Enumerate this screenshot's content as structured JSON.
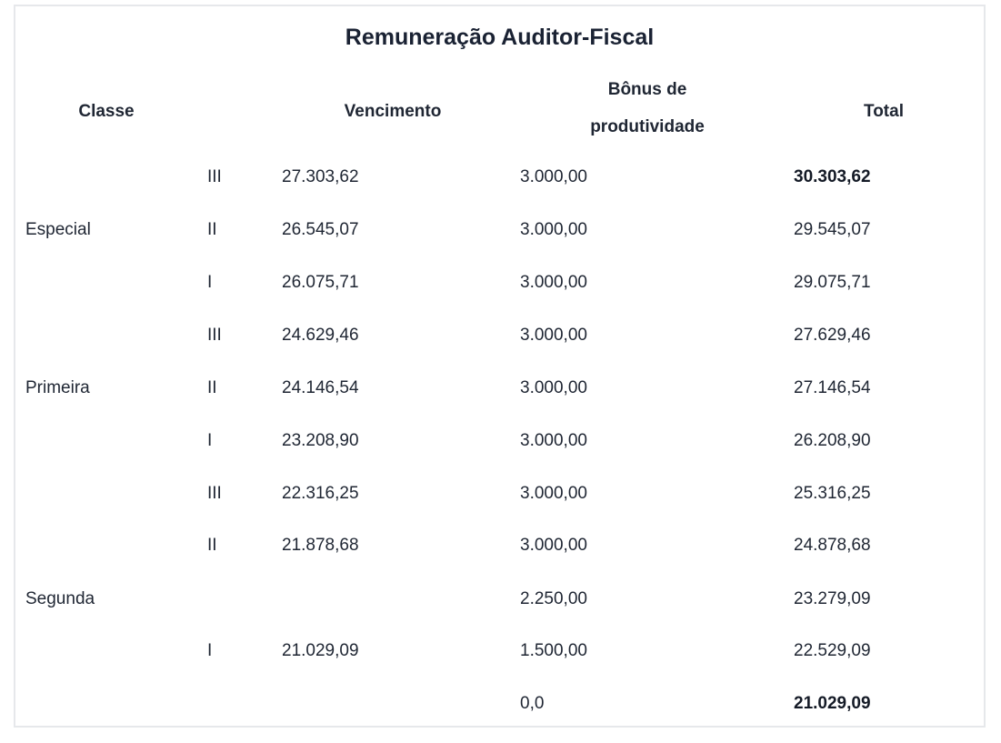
{
  "table": {
    "title": "Remuneração Auditor-Fiscal",
    "headers": {
      "classe": "Classe",
      "vencimento": "Vencimento",
      "bonus_line1": "Bônus de",
      "bonus_line2": "produtividade",
      "total": "Total"
    },
    "classes": [
      "Especial",
      "Primeira",
      "Segunda"
    ],
    "rows": [
      {
        "padrao": "III",
        "vencimento": "27.303,62",
        "bonus": "3.000,00",
        "total": "30.303,62",
        "total_bold": true
      },
      {
        "padrao": "II",
        "vencimento": "26.545,07",
        "bonus": "3.000,00",
        "total": "29.545,07"
      },
      {
        "padrao": "I",
        "vencimento": "26.075,71",
        "bonus": "3.000,00",
        "total": "29.075,71"
      },
      {
        "padrao": "III",
        "vencimento": "24.629,46",
        "bonus": "3.000,00",
        "total": "27.629,46"
      },
      {
        "padrao": "II",
        "vencimento": "24.146,54",
        "bonus": "3.000,00",
        "total": "27.146,54"
      },
      {
        "padrao": "I",
        "vencimento": "23.208,90",
        "bonus": "3.000,00",
        "total": "26.208,90"
      },
      {
        "padrao": "III",
        "vencimento": "22.316,25",
        "bonus": "3.000,00",
        "total": "25.316,25"
      },
      {
        "padrao": "II",
        "vencimento": "21.878,68",
        "bonus": "3.000,00",
        "total": "24.878,68"
      },
      {
        "padrao": "",
        "vencimento": "",
        "bonus": "2.250,00",
        "total": "23.279,09"
      },
      {
        "padrao": "I",
        "vencimento": "21.029,09",
        "bonus": "1.500,00",
        "total": "22.529,09"
      },
      {
        "padrao": "",
        "vencimento": "",
        "bonus": "0,0",
        "total": "21.029,09",
        "total_bold": true
      }
    ]
  }
}
